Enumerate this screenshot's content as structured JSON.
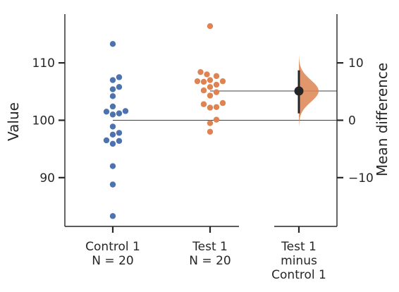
{
  "chart_data": {
    "type": "scatter",
    "subtype": "estimation-plot",
    "categories": [
      "Control 1",
      "Test 1"
    ],
    "group_labels": [
      [
        "Control 1",
        "N = 20"
      ],
      [
        "Test 1",
        "N = 20"
      ]
    ],
    "delta_label": [
      "Test 1",
      "minus",
      "Control 1"
    ],
    "ylabel": "Value",
    "ylabel_right": "Mean difference",
    "ylim": [
      81.5,
      118.5
    ],
    "yticks": [
      90,
      100,
      110
    ],
    "ylim_right": [
      -18.5,
      18.5
    ],
    "yticks_right": [
      -10,
      0,
      10
    ],
    "series": [
      {
        "name": "Control 1",
        "color": "#4c72b0",
        "values": [
          113.3,
          107.5,
          107.0,
          105.8,
          105.4,
          104.2,
          102.4,
          101.6,
          101.5,
          101.2,
          101.0,
          98.9,
          97.8,
          97.5,
          96.5,
          96.4,
          95.9,
          92.0,
          88.8,
          83.3
        ]
      },
      {
        "name": "Test 1",
        "color": "#dd8452",
        "values": [
          116.4,
          108.4,
          108.0,
          107.7,
          107.0,
          106.8,
          106.8,
          106.7,
          106.2,
          105.8,
          105.2,
          104.9,
          104.3,
          103.0,
          102.8,
          102.3,
          102.2,
          100.1,
          99.5,
          98.0
        ]
      }
    ],
    "group_means": [
      100.0,
      105.1
    ],
    "mean_difference": 5.1,
    "ci": [
      1.2,
      8.7
    ],
    "bootstrap_color": "#dd8452"
  }
}
